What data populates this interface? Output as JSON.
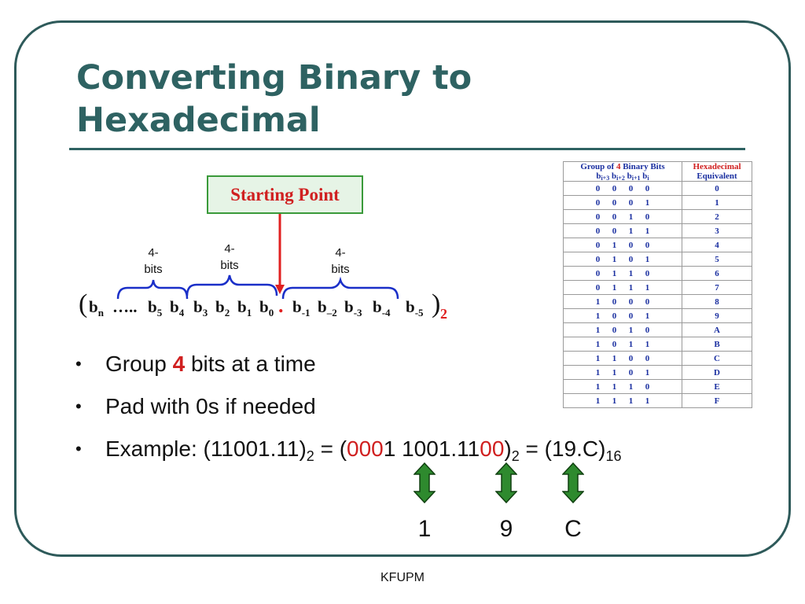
{
  "slide": {
    "title_line1": "Converting Binary to",
    "title_line2": "Hexadecimal",
    "footer": "KFUPM"
  },
  "diagram": {
    "starting_point": "Starting Point",
    "group_label_line1": "4-",
    "group_label_line2": "bits",
    "sequence": {
      "open_paren": "(",
      "bn": "b",
      "bn_sub": "n",
      "dots": "…..",
      "b5": "b",
      "b5_sub": "5",
      "b4": "b",
      "b4_sub": "4",
      "b3": "b",
      "b3_sub": "3",
      "b2": "b",
      "b2_sub": "2",
      "b1": "b",
      "b1_sub": "1",
      "b0": "b",
      "b0_sub": "0",
      "point": ".",
      "bm1": "b",
      "bm1_sub": "-1",
      "bm2": "b",
      "bm2_sub": "–2",
      "bm3": "b",
      "bm3_sub": "-3",
      "bm4": "b",
      "bm4_sub": "-4",
      "bm5": "b",
      "bm5_sub": "-5",
      "close_paren": ")",
      "base": "2"
    }
  },
  "table": {
    "header1_prefix": "Group of ",
    "header1_num": "4",
    "header1_suffix": " Binary Bits",
    "header1_sub": {
      "b3": "b",
      "s3": "i+3",
      "b2": "b",
      "s2": "i+2",
      "b1": "b",
      "s1": "i+1",
      "b0": "b",
      "s0": "i"
    },
    "header2_line1": "Hexadecimal",
    "header2_line2": "Equivalent",
    "rows": [
      {
        "bits": [
          "0",
          "0",
          "0",
          "0"
        ],
        "hex": "0"
      },
      {
        "bits": [
          "0",
          "0",
          "0",
          "1"
        ],
        "hex": "1"
      },
      {
        "bits": [
          "0",
          "0",
          "1",
          "0"
        ],
        "hex": "2"
      },
      {
        "bits": [
          "0",
          "0",
          "1",
          "1"
        ],
        "hex": "3"
      },
      {
        "bits": [
          "0",
          "1",
          "0",
          "0"
        ],
        "hex": "4"
      },
      {
        "bits": [
          "0",
          "1",
          "0",
          "1"
        ],
        "hex": "5"
      },
      {
        "bits": [
          "0",
          "1",
          "1",
          "0"
        ],
        "hex": "6"
      },
      {
        "bits": [
          "0",
          "1",
          "1",
          "1"
        ],
        "hex": "7"
      },
      {
        "bits": [
          "1",
          "0",
          "0",
          "0"
        ],
        "hex": "8"
      },
      {
        "bits": [
          "1",
          "0",
          "0",
          "1"
        ],
        "hex": "9"
      },
      {
        "bits": [
          "1",
          "0",
          "1",
          "0"
        ],
        "hex": "A"
      },
      {
        "bits": [
          "1",
          "0",
          "1",
          "1"
        ],
        "hex": "B"
      },
      {
        "bits": [
          "1",
          "1",
          "0",
          "0"
        ],
        "hex": "C"
      },
      {
        "bits": [
          "1",
          "1",
          "0",
          "1"
        ],
        "hex": "D"
      },
      {
        "bits": [
          "1",
          "1",
          "1",
          "0"
        ],
        "hex": "E"
      },
      {
        "bits": [
          "1",
          "1",
          "1",
          "1"
        ],
        "hex": "F"
      }
    ]
  },
  "bullets": {
    "dot": "•",
    "b1_pre": "Group ",
    "b1_num": "4",
    "b1_post": " bits at a time",
    "b2": "Pad with 0s if needed",
    "b3_a": "Example: (11001.11)",
    "b3_sub1": "2",
    "b3_b": " = (",
    "b3_pad1": "000",
    "b3_c": "1 1001.11",
    "b3_pad2": "00",
    "b3_d": ")",
    "b3_sub2": "2",
    "b3_e": " = (19.C)",
    "b3_sub3": "16"
  },
  "result_digits": [
    "1",
    "9",
    "C"
  ],
  "colors": {
    "title": "#2e6262",
    "frame": "#2e5a5a",
    "highlight": "#d02020",
    "brace": "#1a2fc8",
    "arrow_fill": "#2e8a2e",
    "table_text": "#1a2fa0"
  }
}
